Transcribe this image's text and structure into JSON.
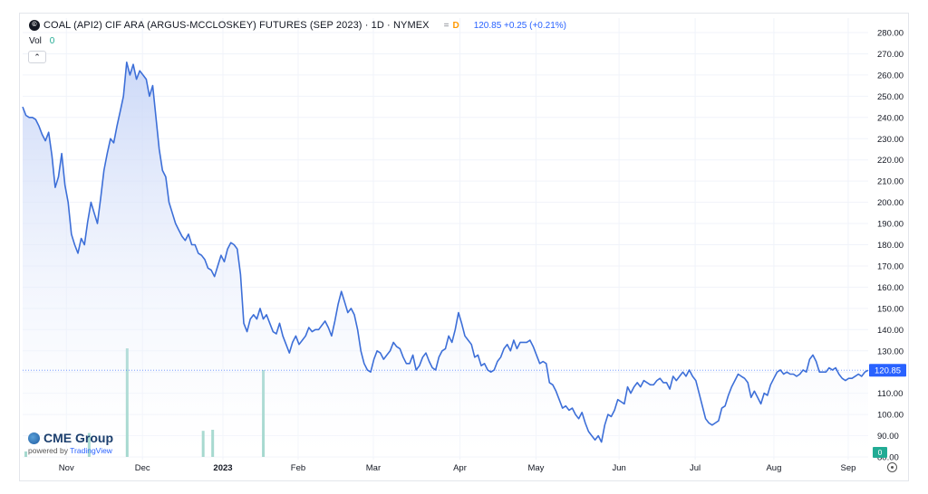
{
  "legend": {
    "logo_text": "©",
    "symbol": "COAL (API2) CIF ARA (ARGUS-MCCLOSKEY) FUTURES (SEP 2023) · 1D · NYMEX",
    "badge_eq": "=",
    "badge_d": "D",
    "price": "120.85 +0.25 (+0.21%)",
    "vol_label": "Vol",
    "vol_value": "0",
    "collapse_icon": "⌃"
  },
  "brand": {
    "name": "CME Group",
    "powered_by": "powered by",
    "tradingview": "TradingView"
  },
  "colors": {
    "line": "#3d6fd8",
    "area_top": "#c7d5f7",
    "area_bottom": "#ffffff",
    "volume": "#8fcfc3",
    "price_tag": "#2962ff",
    "volume_tag": "#22ab94"
  },
  "chart_data": {
    "type": "area",
    "ylim": [
      80,
      285
    ],
    "y_ticks": [
      280,
      270,
      260,
      250,
      240,
      230,
      220,
      210,
      200,
      190,
      180,
      170,
      160,
      150,
      140,
      130,
      120,
      110,
      100,
      90,
      80
    ],
    "y_tick_labels": [
      "280.00",
      "270.00",
      "260.00",
      "250.00",
      "240.00",
      "230.00",
      "220.00",
      "210.00",
      "200.00",
      "190.00",
      "180.00",
      "170.00",
      "160.00",
      "150.00",
      "140.00",
      "130.00",
      "120.00",
      "110.00",
      "100.00",
      "90.00",
      "80.00"
    ],
    "x_labels": [
      "Nov",
      "Dec",
      "2023",
      "Feb",
      "Mar",
      "Apr",
      "May",
      "Jun",
      "Jul",
      "Aug",
      "Sep"
    ],
    "x_label_pos": [
      0.05,
      0.137,
      0.229,
      0.315,
      0.401,
      0.5,
      0.587,
      0.682,
      0.769,
      0.859,
      0.944
    ],
    "last_price_label": "120.85",
    "last_volume_label": "0",
    "series": [
      {
        "values": [
          245,
          241,
          240,
          240,
          239,
          236,
          232,
          229,
          233,
          222,
          207,
          212,
          223,
          208,
          200,
          185,
          180,
          176,
          183,
          180,
          191,
          200,
          195,
          190,
          202,
          215,
          223,
          230,
          228,
          236,
          243,
          250,
          266,
          260,
          265,
          258,
          262,
          260,
          258,
          250,
          255,
          240,
          225,
          215,
          212,
          200,
          195,
          190,
          187,
          184,
          182,
          185,
          180,
          180,
          176,
          175,
          173,
          169,
          168,
          165,
          170,
          175,
          172,
          178,
          181,
          180,
          178,
          166,
          143,
          139,
          145,
          147,
          145,
          150,
          145,
          147,
          143,
          139,
          138,
          143,
          137,
          133,
          129,
          134,
          137,
          133,
          135,
          137,
          141,
          139,
          140,
          140,
          142,
          144,
          141,
          137,
          144,
          152,
          158,
          153,
          148,
          150,
          147,
          140,
          130,
          124,
          121,
          120,
          126,
          130,
          129,
          126,
          128,
          130,
          134,
          132,
          131,
          127,
          124,
          124,
          128,
          121,
          123,
          127,
          129,
          125,
          122,
          121,
          127,
          130,
          131,
          137,
          134,
          140,
          148,
          143,
          137,
          135,
          133,
          127,
          128,
          123,
          124,
          121,
          120,
          121,
          125,
          127,
          131,
          133,
          130,
          135,
          131,
          134,
          134,
          134,
          135,
          132,
          128,
          124,
          125,
          124,
          115,
          114,
          111,
          107,
          103,
          104,
          102,
          103,
          100,
          98,
          101,
          96,
          92,
          90,
          88,
          90,
          87,
          95,
          100,
          99,
          102,
          107,
          106,
          105,
          113,
          110,
          113,
          115,
          113,
          116,
          115,
          114,
          114,
          116,
          117,
          115,
          115,
          112,
          118,
          116,
          118,
          120,
          118,
          121,
          118,
          116,
          110,
          104,
          98,
          96,
          95,
          96,
          97,
          103,
          104,
          109,
          113,
          116,
          119,
          118,
          117,
          115,
          108,
          111,
          108,
          105,
          110,
          109,
          114,
          117,
          120,
          121,
          119,
          120,
          119,
          119,
          118,
          119,
          121,
          120,
          126,
          128,
          125,
          120,
          120,
          120,
          122,
          121,
          122,
          119,
          117,
          116,
          117,
          117,
          118,
          119,
          118,
          120,
          120.85
        ]
      }
    ],
    "volume": {
      "max": 100,
      "values": [
        0,
        5,
        0,
        0,
        0,
        0,
        0,
        0,
        0,
        0,
        0,
        0,
        0,
        0,
        0,
        0,
        0,
        0,
        0,
        0,
        0,
        22,
        0,
        0,
        0,
        0,
        0,
        0,
        0,
        0,
        0,
        0,
        0,
        100,
        0,
        0,
        0,
        0,
        0,
        0,
        0,
        0,
        0,
        0,
        0,
        0,
        0,
        0,
        0,
        0,
        0,
        0,
        0,
        0,
        0,
        0,
        0,
        24,
        0,
        0,
        25,
        0,
        0,
        0,
        0,
        0,
        0,
        0,
        0,
        0,
        0,
        0,
        0,
        0,
        0,
        0,
        80,
        0,
        0,
        0,
        0,
        0,
        0,
        0,
        0,
        0,
        0,
        0,
        0,
        0,
        0,
        0,
        0,
        0,
        0,
        0,
        0,
        0,
        0,
        0,
        0,
        0,
        0,
        0,
        0,
        0,
        0,
        0,
        0,
        0,
        0,
        0,
        0,
        0,
        0,
        0,
        0,
        0,
        0,
        0,
        0,
        0,
        0,
        0,
        0,
        0,
        0,
        0,
        0,
        0,
        0,
        0,
        0,
        0,
        0,
        0,
        0,
        0,
        0,
        0,
        0,
        0,
        0,
        0,
        0,
        0,
        0,
        0,
        0,
        0,
        0,
        0,
        0,
        0,
        0,
        0,
        0,
        0,
        0,
        0,
        0,
        0,
        0,
        0,
        0,
        0,
        0,
        0,
        0,
        0,
        0,
        0,
        0,
        0,
        0,
        0,
        0,
        0,
        0,
        0,
        0,
        0,
        0,
        0,
        0,
        0,
        0,
        0,
        0,
        0,
        0,
        0,
        0,
        0,
        0,
        0,
        0,
        0,
        0,
        0,
        0,
        0,
        0,
        0,
        0,
        0,
        0,
        0,
        0,
        0,
        0,
        0,
        0,
        0,
        0,
        0,
        0,
        0,
        0,
        0,
        0,
        0,
        0,
        0,
        0,
        0,
        0,
        0,
        0,
        0,
        0,
        0,
        0,
        0,
        0,
        0,
        0,
        0,
        0,
        0,
        0,
        0,
        0,
        0,
        0,
        0,
        0,
        0,
        0,
        0,
        0,
        0,
        0,
        0,
        0,
        0,
        0,
        0,
        0,
        0,
        0,
        0,
        0,
        0,
        0,
        0,
        0,
        0
      ]
    }
  }
}
